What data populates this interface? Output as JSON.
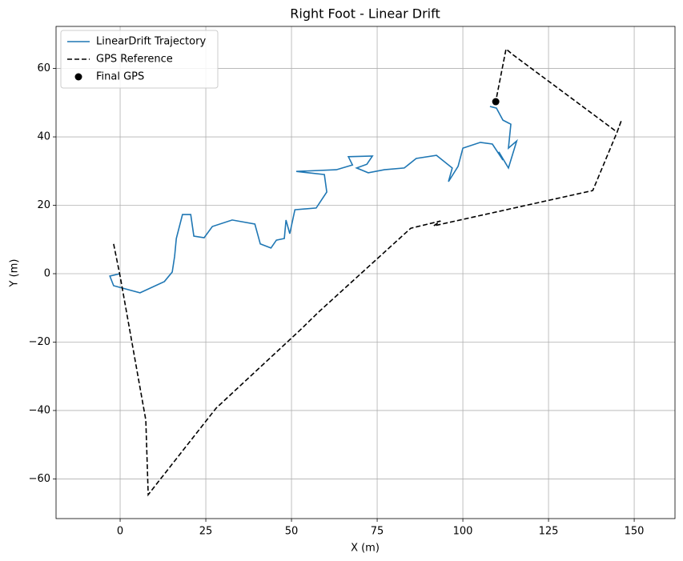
{
  "chart_data": {
    "type": "line",
    "title": "Right Foot - Linear Drift",
    "x_label": "X (m)",
    "y_label": "Y (m)",
    "xlim": [
      -18.7,
      161.9
    ],
    "ylim": [
      -71.6,
      72.3
    ],
    "xticks": [
      0,
      25,
      50,
      75,
      100,
      125,
      150
    ],
    "yticks": [
      {
        "value": -60,
        "label": "−60"
      },
      {
        "value": -40,
        "label": "−40"
      },
      {
        "value": -20,
        "label": "−20"
      },
      0,
      20,
      40,
      60
    ],
    "grid": true,
    "legend": "upper left",
    "series": [
      {
        "name": "LinearDrift Trajectory",
        "color": "#1f77b4",
        "linestyle": "solid",
        "marker": null,
        "x": [
          0,
          -3,
          -1.9,
          5.8,
          12.9,
          15.2,
          15.9,
          16.4,
          18.2,
          20.6,
          21.5,
          24.5,
          26.9,
          32.7,
          39.3,
          40.9,
          44,
          45.6,
          47.9,
          48.4,
          49.5,
          51,
          57.2,
          60.3,
          59.6,
          51.4,
          63.1,
          67.8,
          66.6,
          73.6,
          72,
          69,
          72.4,
          77.1,
          82.9,
          86.4,
          92.3,
          96.9,
          95.8,
          98.6,
          100,
          105.1,
          108.6,
          111.7,
          110.5,
          113.3,
          115.7,
          113.3,
          114,
          111.7,
          109.8,
          107.9
        ],
        "y": [
          0,
          -0.7,
          -3.5,
          -5.6,
          -2.3,
          0.5,
          5.1,
          10.3,
          17.3,
          17.3,
          11,
          10.5,
          13.8,
          15.7,
          14.5,
          8.7,
          7.5,
          9.8,
          10.3,
          15.7,
          11.7,
          18.7,
          19.2,
          23.9,
          29,
          29.9,
          30.4,
          31.8,
          34.2,
          34.4,
          32,
          30.9,
          29.5,
          30.4,
          30.9,
          33.7,
          34.6,
          30.9,
          26.9,
          31.4,
          36.7,
          38.4,
          37.9,
          33.2,
          35.6,
          30.9,
          38.8,
          36.7,
          43.7,
          44.9,
          48.4,
          48.9
        ]
      },
      {
        "name": "GPS Reference",
        "color": "#000000",
        "linestyle": "dashed",
        "marker": null,
        "x": [
          -1.9,
          0,
          7.5,
          8.2,
          28,
          52.6,
          57.9,
          84.8,
          93.5,
          91.5,
          137.9,
          145,
          146.3,
          145,
          114.5,
          112.6,
          109.6
        ],
        "y": [
          8.7,
          -0.7,
          -42.8,
          -64.6,
          -39.3,
          -16.4,
          -11.2,
          13.3,
          15.4,
          14,
          24.3,
          41.4,
          44.9,
          41.4,
          64.1,
          65.7,
          50.3
        ]
      },
      {
        "name": "Final GPS",
        "color": "#000000",
        "linestyle": null,
        "marker": "o",
        "x": [
          109.6
        ],
        "y": [
          50.3
        ]
      }
    ]
  }
}
